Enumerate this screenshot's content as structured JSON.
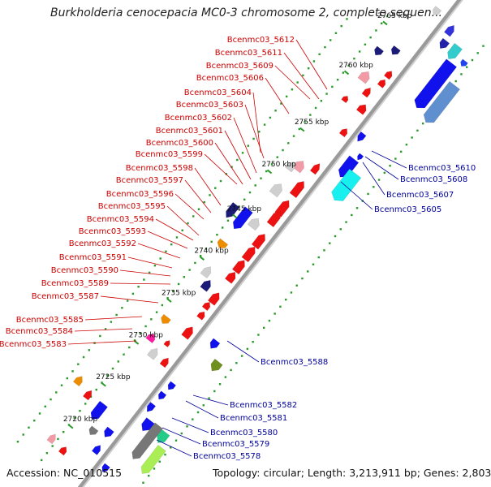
{
  "title": "Burkholderia cenocepacia MC0-3 chromosome 2, complete sequen...",
  "footer": {
    "accession": "Accession: NC_010515",
    "topology": "Topology: circular; Length: 3,213,911 bp; Genes: 2,803"
  },
  "colors": {
    "red_label": "#cc0000",
    "blue_label": "#000099",
    "backbone": "#888888",
    "tick": "#2a9a2a"
  },
  "kbp_ticks": [
    {
      "label": "2720 kbp",
      "t": 0.925
    },
    {
      "label": "2725 kbp",
      "t": 0.84
    },
    {
      "label": "2730 kbp",
      "t": 0.755
    },
    {
      "label": "2735 kbp",
      "t": 0.67
    },
    {
      "label": "2740 kbp",
      "t": 0.585
    },
    {
      "label": "2745 kbp",
      "t": 0.5
    },
    {
      "label": "2750 kbp",
      "t": 0.41
    },
    {
      "label": "2755 kbp",
      "t": 0.325
    },
    {
      "label": "2760 kbp",
      "t": 0.21
    },
    {
      "label": "2765 kbp",
      "t": 0.11
    }
  ],
  "genes_left": [
    {
      "label": "Bcenmc03_5612"
    },
    {
      "label": "Bcenmc03_5611"
    },
    {
      "label": "Bcenmc03_5609"
    },
    {
      "label": "Bcenmc03_5606"
    },
    {
      "label": "Bcenmc03_5604"
    },
    {
      "label": "Bcenmc03_5603"
    },
    {
      "label": "Bcenmc03_5602"
    },
    {
      "label": "Bcenmc03_5601"
    },
    {
      "label": "Bcenmc03_5600"
    },
    {
      "label": "Bcenmc03_5599"
    },
    {
      "label": "Bcenmc03_5598"
    },
    {
      "label": "Bcenmc03_5597"
    },
    {
      "label": "Bcenmc03_5596"
    },
    {
      "label": "Bcenmc03_5595"
    },
    {
      "label": "Bcenmc03_5594"
    },
    {
      "label": "Bcenmc03_5593"
    },
    {
      "label": "Bcenmc03_5592"
    },
    {
      "label": "Bcenmc03_5591"
    },
    {
      "label": "Bcenmc03_5590"
    },
    {
      "label": "Bcenmc03_5589"
    },
    {
      "label": "Bcenmc03_5587"
    },
    {
      "label": "Bcenmc03_5585"
    },
    {
      "label": "Bcenmc03_5584"
    },
    {
      "label": "Bcenmc03_5583"
    }
  ],
  "genes_right": [
    {
      "label": "Bcenmc03_5610"
    },
    {
      "label": "Bcenmc03_5608"
    },
    {
      "label": "Bcenmc03_5607"
    },
    {
      "label": "Bcenmc03_5605"
    },
    {
      "label": "Bcenmc03_5588"
    },
    {
      "label": "Bcenmc03_5582"
    },
    {
      "label": "Bcenmc03_5581"
    },
    {
      "label": "Bcenmc03_5580"
    },
    {
      "label": "Bcenmc03_5579"
    },
    {
      "label": "Bcenmc03_5578"
    }
  ]
}
